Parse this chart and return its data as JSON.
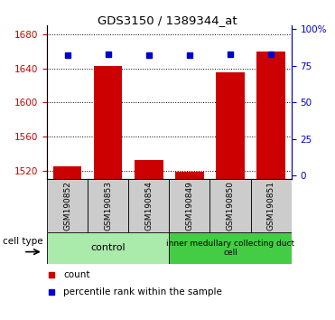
{
  "title": "GDS3150 / 1389344_at",
  "samples": [
    "GSM190852",
    "GSM190853",
    "GSM190854",
    "GSM190849",
    "GSM190850",
    "GSM190851"
  ],
  "counts": [
    1525,
    1643,
    1533,
    1519,
    1635,
    1660
  ],
  "percentiles": [
    82,
    83,
    82,
    82,
    83,
    83
  ],
  "ylim_left": [
    1510,
    1690
  ],
  "ylim_right": [
    -2.5,
    102.5
  ],
  "yticks_left": [
    1520,
    1560,
    1600,
    1640,
    1680
  ],
  "yticks_right": [
    0,
    25,
    50,
    75,
    100
  ],
  "ctrl_color": "#AAEAAA",
  "imcd_color": "#44CC44",
  "sample_box_color": "#CCCCCC",
  "bar_color": "#CC0000",
  "dot_color": "#0000CC",
  "bar_width": 0.7,
  "bg_color": "#FFFFFF",
  "axis_color_left": "#CC0000",
  "axis_color_right": "#0000CC",
  "cell_type_label": "cell type",
  "legend_count": "count",
  "legend_percentile": "percentile rank within the sample",
  "ctrl_label": "control",
  "imcd_label": "inner medullary collecting duct\ncell"
}
